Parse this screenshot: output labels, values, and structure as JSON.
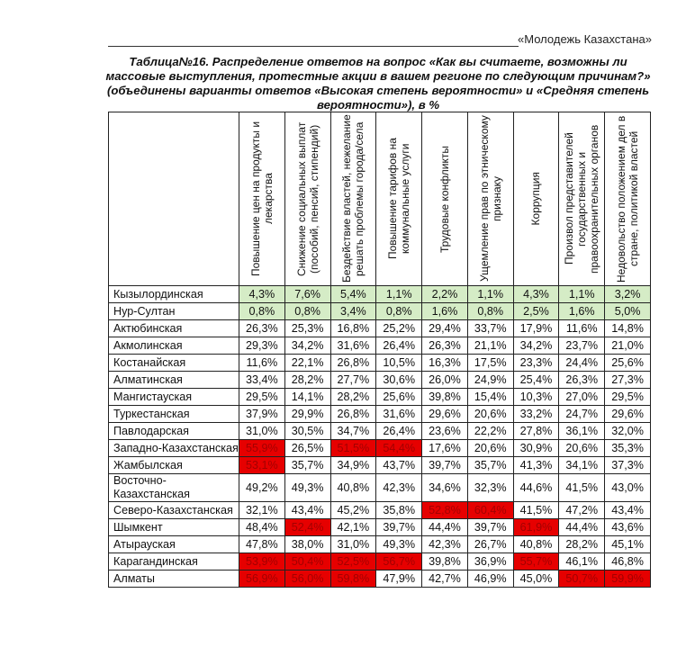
{
  "running_header": "«Молодежь Казахстана»",
  "title": "Таблица№16. Распределение ответов на вопрос «Как вы считаете, возможны ли массовые выступления, протестные акции в вашем регионе по следующим причинам?» (объединены варианты ответов «Высокая степень вероятности» и «Средняя степень вероятности»), в %",
  "colors": {
    "red": "#e60000",
    "green": "#d5ecc6"
  },
  "columns": [
    "Повышение цен на продукты и лекарства",
    "Снижение социальных выплат (пособий, пенсий, стипендий)",
    "Бездействие властей, нежелание решать проблемы города/села",
    "Повышение тарифов на коммунальные услуги",
    "Трудовые конфликты",
    "Ущемление прав по этническому признаку",
    "Коррупция",
    "Произвол представителей государственных и правоохранительных органов",
    "Недовольство положением дел в стране, политикой властей"
  ],
  "rows": [
    {
      "region": "Кызылординская",
      "values": [
        "4,3%",
        "7,6%",
        "5,4%",
        "1,1%",
        "2,2%",
        "1,1%",
        "4,3%",
        "1,1%",
        "3,2%"
      ],
      "highlight": [
        "green",
        "green",
        "green",
        "green",
        "green",
        "green",
        "green",
        "green",
        "green"
      ]
    },
    {
      "region": "Нур-Султан",
      "values": [
        "0,8%",
        "0,8%",
        "3,4%",
        "0,8%",
        "1,6%",
        "0,8%",
        "2,5%",
        "1,6%",
        "5,0%"
      ],
      "highlight": [
        "green",
        "green",
        "green",
        "green",
        "green",
        "green",
        "green",
        "green",
        "green"
      ]
    },
    {
      "region": "Актюбинская",
      "values": [
        "26,3%",
        "25,3%",
        "16,8%",
        "25,2%",
        "29,4%",
        "33,7%",
        "17,9%",
        "11,6%",
        "14,8%"
      ],
      "highlight": []
    },
    {
      "region": "Акмолинская",
      "values": [
        "29,3%",
        "34,2%",
        "31,6%",
        "26,4%",
        "26,3%",
        "21,1%",
        "34,2%",
        "23,7%",
        "21,0%"
      ],
      "highlight": []
    },
    {
      "region": "Костанайская",
      "values": [
        "11,6%",
        "22,1%",
        "26,8%",
        "10,5%",
        "16,3%",
        "17,5%",
        "23,3%",
        "24,4%",
        "25,6%"
      ],
      "highlight": []
    },
    {
      "region": "Алматинская",
      "values": [
        "33,4%",
        "28,2%",
        "27,7%",
        "30,6%",
        "26,0%",
        "24,9%",
        "25,4%",
        "26,3%",
        "27,3%"
      ],
      "highlight": []
    },
    {
      "region": "Мангистауская",
      "values": [
        "29,5%",
        "14,1%",
        "28,2%",
        "25,6%",
        "39,8%",
        "15,4%",
        "10,3%",
        "27,0%",
        "29,5%"
      ],
      "highlight": []
    },
    {
      "region": "Туркестанская",
      "values": [
        "37,9%",
        "29,9%",
        "26,8%",
        "31,6%",
        "29,6%",
        "20,6%",
        "33,2%",
        "24,7%",
        "29,6%"
      ],
      "highlight": []
    },
    {
      "region": "Павлодарская",
      "values": [
        "31,0%",
        "30,5%",
        "34,7%",
        "26,4%",
        "23,6%",
        "22,2%",
        "27,8%",
        "36,1%",
        "32,0%"
      ],
      "highlight": []
    },
    {
      "region": "Западно-Казахстанская",
      "values": [
        "55,9%",
        "26,5%",
        "51,5%",
        "54,4%",
        "17,6%",
        "20,6%",
        "30,9%",
        "20,6%",
        "35,3%"
      ],
      "highlight": [
        "red",
        null,
        "red",
        "red"
      ]
    },
    {
      "region": "Жамбылская",
      "values": [
        "53,1%",
        "35,7%",
        "34,9%",
        "43,7%",
        "39,7%",
        "35,7%",
        "41,3%",
        "34,1%",
        "37,3%"
      ],
      "highlight": [
        "red"
      ]
    },
    {
      "region": "Восточно-Казахстанская",
      "values": [
        "49,2%",
        "49,3%",
        "40,8%",
        "42,3%",
        "34,6%",
        "32,3%",
        "44,6%",
        "41,5%",
        "43,0%"
      ],
      "highlight": []
    },
    {
      "region": "Северо-Казахстанская",
      "values": [
        "32,1%",
        "43,4%",
        "45,2%",
        "35,8%",
        "52,8%",
        "60,4%",
        "41,5%",
        "47,2%",
        "43,4%"
      ],
      "highlight": [
        null,
        null,
        null,
        null,
        "red",
        "red"
      ]
    },
    {
      "region": "Шымкент",
      "values": [
        "48,4%",
        "52,4%",
        "42,1%",
        "39,7%",
        "44,4%",
        "39,7%",
        "61,9%",
        "44,4%",
        "43,6%"
      ],
      "highlight": [
        null,
        "red",
        null,
        null,
        null,
        null,
        "red"
      ]
    },
    {
      "region": "Атырауская",
      "values": [
        "47,8%",
        "38,0%",
        "31,0%",
        "49,3%",
        "42,3%",
        "26,7%",
        "40,8%",
        "28,2%",
        "45,1%"
      ],
      "highlight": []
    },
    {
      "region": "Карагандинская",
      "values": [
        "53,9%",
        "50,4%",
        "52,5%",
        "56,7%",
        "39,8%",
        "36,9%",
        "55,7%",
        "46,1%",
        "46,8%"
      ],
      "highlight": [
        "red",
        "red",
        "red",
        "red",
        null,
        null,
        "red"
      ]
    },
    {
      "region": "Алматы",
      "values": [
        "56,9%",
        "56,0%",
        "59,8%",
        "47,9%",
        "42,7%",
        "46,9%",
        "45,0%",
        "50,7%",
        "59,9%"
      ],
      "highlight": [
        "red",
        "red",
        "red",
        null,
        null,
        null,
        null,
        "red",
        "red"
      ]
    }
  ]
}
